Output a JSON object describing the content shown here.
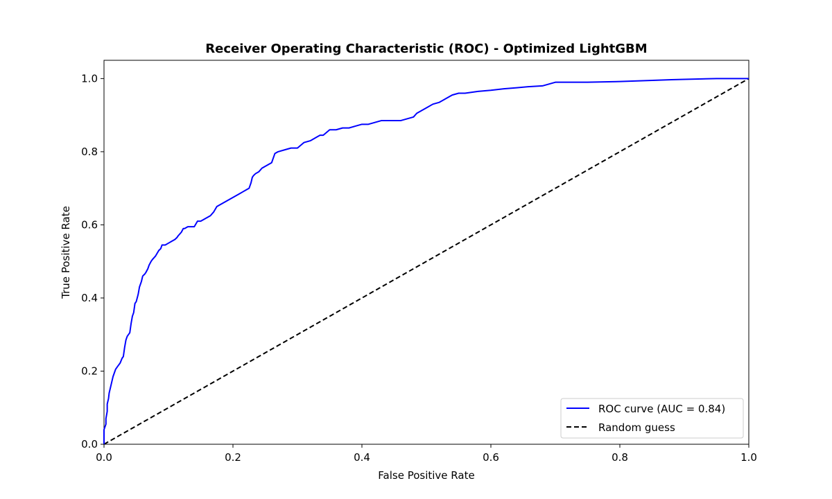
{
  "chart_data": {
    "type": "line",
    "title": "Receiver Operating Characteristic (ROC) - Optimized LightGBM",
    "xlabel": "False Positive Rate",
    "ylabel": "True Positive Rate",
    "xlim": [
      0.0,
      1.0
    ],
    "ylim": [
      0.0,
      1.05
    ],
    "x_ticks": [
      "0.0",
      "0.2",
      "0.4",
      "0.6",
      "0.8",
      "1.0"
    ],
    "y_ticks": [
      "0.0",
      "0.2",
      "0.4",
      "0.6",
      "0.8",
      "1.0"
    ],
    "grid": false,
    "legend_placement": "lower-right",
    "series": [
      {
        "name": "ROC curve (AUC = 0.84)",
        "color": "#0000ff",
        "style": "solid",
        "x": [
          0.0,
          0.0,
          0.003,
          0.003,
          0.005,
          0.005,
          0.007,
          0.008,
          0.01,
          0.012,
          0.014,
          0.016,
          0.018,
          0.02,
          0.022,
          0.025,
          0.028,
          0.03,
          0.032,
          0.034,
          0.036,
          0.038,
          0.04,
          0.042,
          0.044,
          0.046,
          0.048,
          0.05,
          0.053,
          0.055,
          0.058,
          0.06,
          0.063,
          0.065,
          0.068,
          0.07,
          0.073,
          0.075,
          0.08,
          0.085,
          0.088,
          0.09,
          0.095,
          0.1,
          0.105,
          0.11,
          0.113,
          0.115,
          0.12,
          0.123,
          0.125,
          0.13,
          0.14,
          0.145,
          0.15,
          0.16,
          0.165,
          0.17,
          0.175,
          0.18,
          0.185,
          0.19,
          0.195,
          0.2,
          0.205,
          0.21,
          0.215,
          0.22,
          0.225,
          0.228,
          0.23,
          0.232,
          0.235,
          0.24,
          0.245,
          0.25,
          0.255,
          0.26,
          0.262,
          0.265,
          0.27,
          0.28,
          0.29,
          0.3,
          0.31,
          0.32,
          0.33,
          0.335,
          0.34,
          0.35,
          0.36,
          0.37,
          0.38,
          0.39,
          0.4,
          0.41,
          0.42,
          0.43,
          0.44,
          0.45,
          0.46,
          0.47,
          0.48,
          0.485,
          0.49,
          0.495,
          0.5,
          0.51,
          0.52,
          0.53,
          0.54,
          0.55,
          0.56,
          0.58,
          0.6,
          0.62,
          0.64,
          0.66,
          0.68,
          0.69,
          0.7,
          0.75,
          0.8,
          0.85,
          0.88,
          0.9,
          0.95,
          1.0
        ],
        "y": [
          0.0,
          0.04,
          0.055,
          0.07,
          0.09,
          0.11,
          0.125,
          0.14,
          0.155,
          0.17,
          0.185,
          0.195,
          0.205,
          0.21,
          0.215,
          0.222,
          0.235,
          0.24,
          0.265,
          0.285,
          0.295,
          0.3,
          0.305,
          0.33,
          0.35,
          0.36,
          0.385,
          0.39,
          0.41,
          0.43,
          0.445,
          0.46,
          0.465,
          0.47,
          0.48,
          0.49,
          0.5,
          0.505,
          0.515,
          0.53,
          0.535,
          0.545,
          0.545,
          0.55,
          0.555,
          0.56,
          0.565,
          0.57,
          0.58,
          0.59,
          0.59,
          0.595,
          0.595,
          0.61,
          0.61,
          0.62,
          0.625,
          0.635,
          0.65,
          0.655,
          0.66,
          0.665,
          0.67,
          0.675,
          0.68,
          0.685,
          0.69,
          0.695,
          0.7,
          0.715,
          0.73,
          0.735,
          0.74,
          0.745,
          0.755,
          0.76,
          0.765,
          0.77,
          0.78,
          0.795,
          0.8,
          0.805,
          0.81,
          0.81,
          0.825,
          0.83,
          0.84,
          0.845,
          0.845,
          0.86,
          0.86,
          0.865,
          0.865,
          0.87,
          0.875,
          0.875,
          0.88,
          0.885,
          0.885,
          0.885,
          0.885,
          0.89,
          0.895,
          0.905,
          0.91,
          0.915,
          0.92,
          0.93,
          0.935,
          0.945,
          0.955,
          0.96,
          0.96,
          0.965,
          0.968,
          0.972,
          0.975,
          0.978,
          0.98,
          0.985,
          0.99,
          0.99,
          0.992,
          0.995,
          0.997,
          0.998,
          1.0,
          1.0
        ]
      },
      {
        "name": "Random guess",
        "color": "#000000",
        "style": "dashed",
        "x": [
          0.0,
          1.0
        ],
        "y": [
          0.0,
          1.0
        ]
      }
    ]
  }
}
